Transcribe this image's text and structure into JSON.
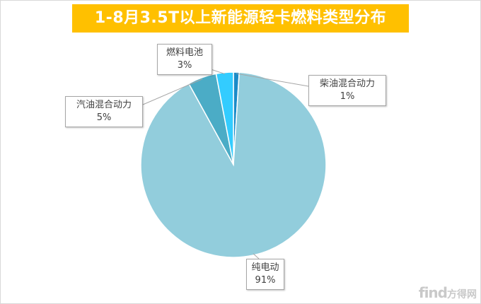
{
  "chart_data": {
    "type": "pie",
    "title": "1-8月3.5T以上新能源轻卡燃料类型分布",
    "slices": [
      {
        "name": "柴油混合动力",
        "value": 1,
        "label": "1%",
        "color": "#1a8bc8"
      },
      {
        "name": "纯电动",
        "value": 91,
        "label": "91%",
        "color": "#92cddc"
      },
      {
        "name": "汽油混合动力",
        "value": 5,
        "label": "5%",
        "color": "#4bacc6"
      },
      {
        "name": "燃料电池",
        "value": 3,
        "label": "3%",
        "color": "#33ccff"
      }
    ],
    "start_angle_deg": 0,
    "direction": "clockwise",
    "legend": "none"
  },
  "watermark": {
    "latin": "find",
    "cn": "方得网"
  }
}
